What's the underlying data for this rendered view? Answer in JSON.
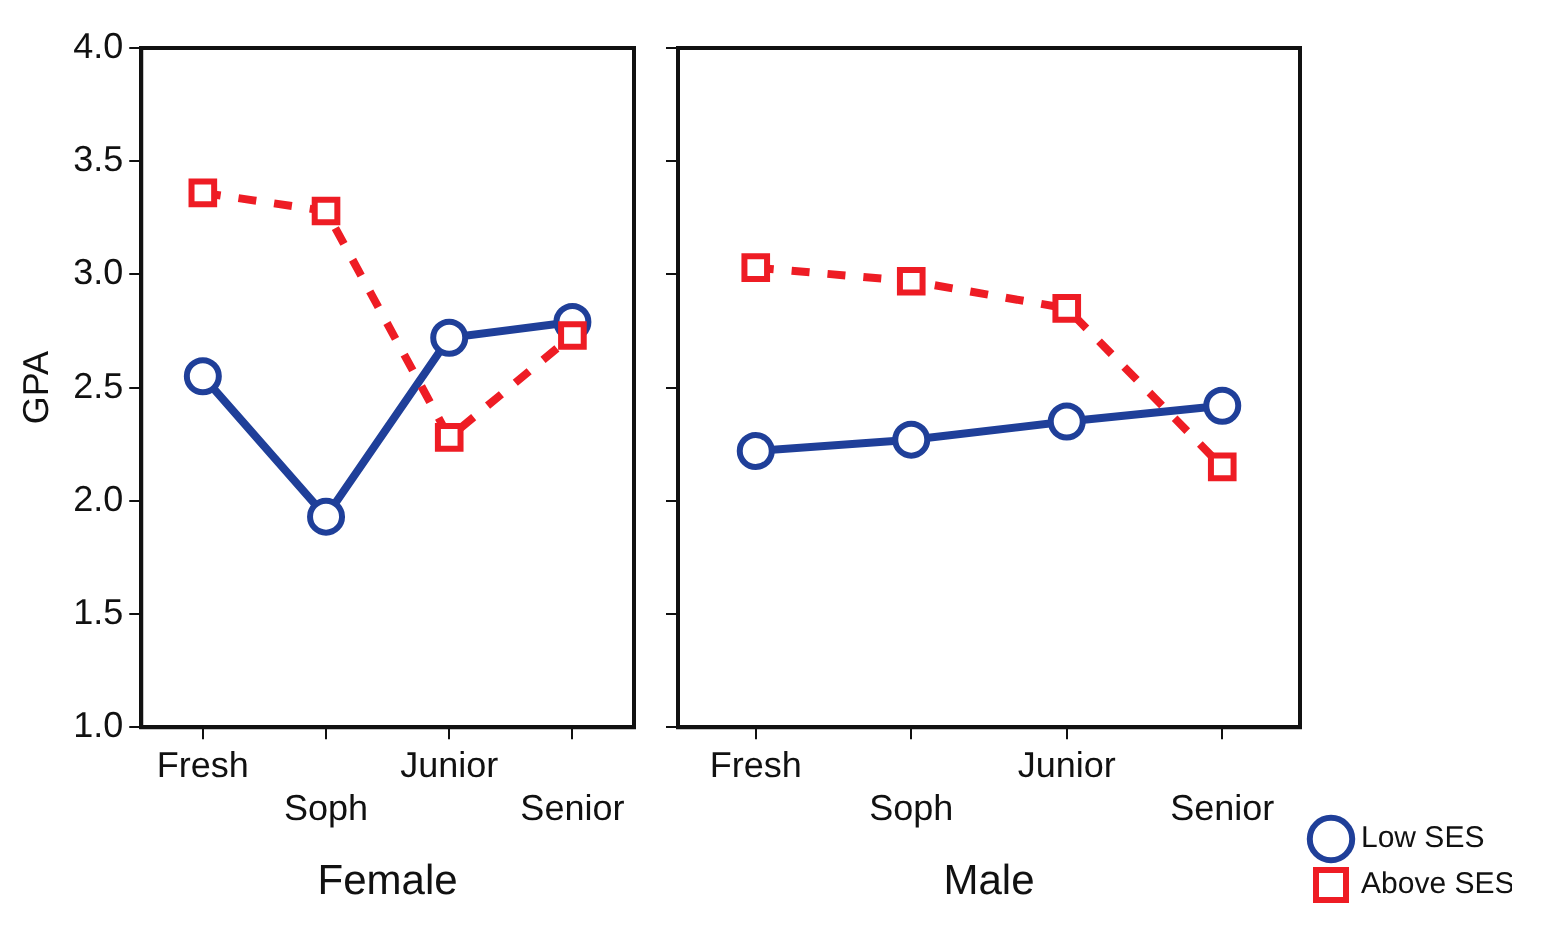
{
  "chart_data": [
    {
      "type": "line",
      "xlabel": "Female",
      "ylabel": "GPA",
      "categories": [
        "Fresh",
        "Soph",
        "Junior",
        "Senior"
      ],
      "ylim": [
        1,
        4
      ],
      "yticks": [
        {
          "value": 1,
          "label": "1.0"
        },
        {
          "value": 1.5,
          "label": "1.5"
        },
        {
          "value": 2,
          "label": "2.0"
        },
        {
          "value": 2.5,
          "label": "2.5"
        },
        {
          "value": 3,
          "label": "3.0"
        },
        {
          "value": 3.5,
          "label": "3.5"
        },
        {
          "value": 4,
          "label": "4.0"
        }
      ],
      "series": [
        {
          "color": "#1f3f99",
          "marker": "circle",
          "line_style": "solid",
          "values": [
            2.55,
            1.93,
            2.72,
            2.79
          ]
        },
        {
          "color": "#ee1c24",
          "marker": "square",
          "line_style": "dashed",
          "values": [
            3.36,
            3.28,
            2.28,
            2.73
          ]
        }
      ]
    },
    {
      "type": "line",
      "xlabel": "Male",
      "categories": [
        "Fresh",
        "Soph",
        "Junior",
        "Senior"
      ],
      "ylim": [
        1,
        4
      ],
      "yticks": [
        {
          "value": 1,
          "label": null
        },
        {
          "value": 1.5,
          "label": null
        },
        {
          "value": 2,
          "label": null
        },
        {
          "value": 2.5,
          "label": null
        },
        {
          "value": 3,
          "label": null
        },
        {
          "value": 3.5,
          "label": null
        },
        {
          "value": 4,
          "label": null
        }
      ],
      "tick_labels": "x",
      "legend": "bottom right",
      "series": [
        {
          "name": "Low SES",
          "color": "#1f3f99",
          "marker": "circle",
          "line_style": "solid",
          "values": [
            2.22,
            2.27,
            2.35,
            2.42
          ]
        },
        {
          "name": "Above SES",
          "color": "#ee1c24",
          "marker": "square",
          "line_style": "dashed",
          "values": [
            3.03,
            2.97,
            2.85,
            2.15
          ]
        }
      ]
    }
  ]
}
